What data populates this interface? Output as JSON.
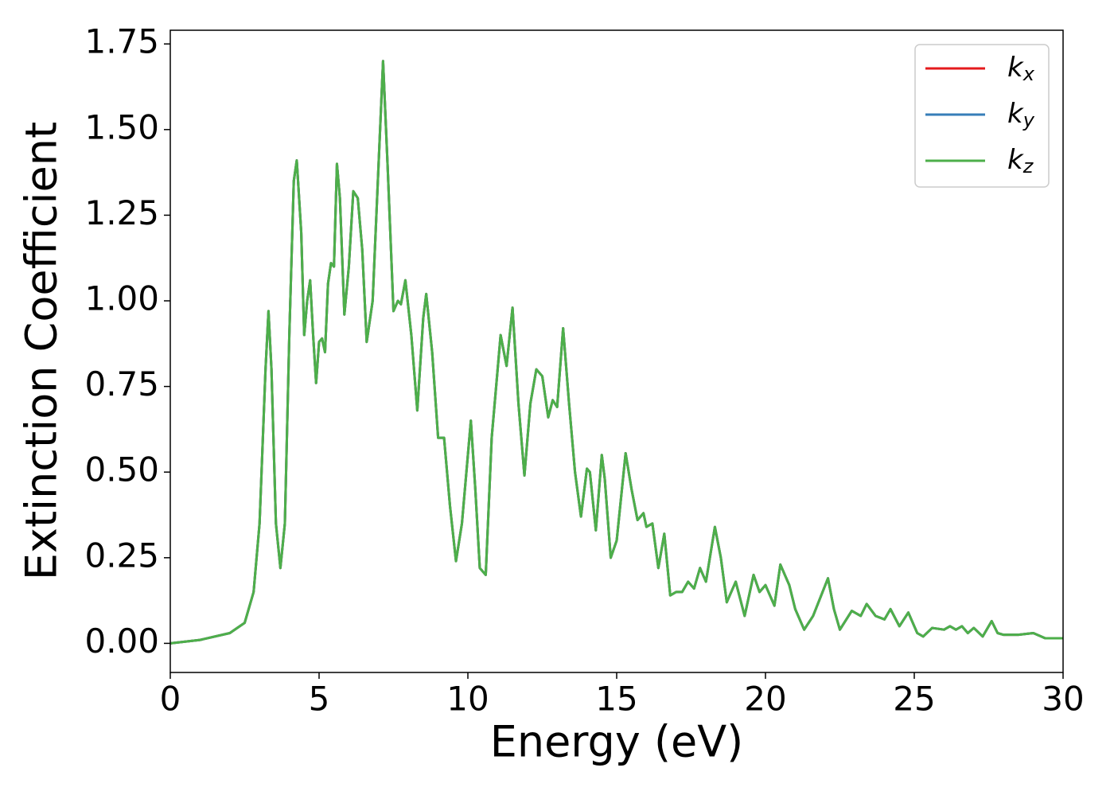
{
  "chart_data": {
    "type": "line",
    "x_label": "Energy (eV)",
    "y_label": "Extinction Coefficient",
    "xlim": [
      0,
      30
    ],
    "ylim": [
      -0.085,
      1.79
    ],
    "xticks": [
      0,
      5,
      10,
      15,
      20,
      25,
      30
    ],
    "yticks": [
      {
        "value": 0,
        "label": "0.00"
      },
      {
        "value": 0.25,
        "label": "0.25"
      },
      {
        "value": 0.5,
        "label": "0.50"
      },
      {
        "value": 0.75,
        "label": "0.75"
      },
      {
        "value": 1,
        "label": "1.00"
      },
      {
        "value": 1.25,
        "label": "1.25"
      },
      {
        "value": 1.5,
        "label": "1.50"
      },
      {
        "value": 1.75,
        "label": "1.75"
      }
    ],
    "grid": false,
    "legend": "upper right",
    "x": [
      0,
      1,
      2,
      2.5,
      2.8,
      3.0,
      3.2,
      3.3,
      3.4,
      3.55,
      3.7,
      3.85,
      4.0,
      4.15,
      4.25,
      4.4,
      4.5,
      4.6,
      4.7,
      4.8,
      4.9,
      5.0,
      5.1,
      5.2,
      5.3,
      5.4,
      5.5,
      5.6,
      5.7,
      5.85,
      6.0,
      6.15,
      6.3,
      6.45,
      6.6,
      6.8,
      7.0,
      7.15,
      7.3,
      7.5,
      7.65,
      7.75,
      7.9,
      8.1,
      8.3,
      8.5,
      8.6,
      8.8,
      9.0,
      9.2,
      9.4,
      9.6,
      9.8,
      10.0,
      10.1,
      10.25,
      10.4,
      10.6,
      10.8,
      11.1,
      11.3,
      11.5,
      11.7,
      11.9,
      12.1,
      12.3,
      12.5,
      12.7,
      12.85,
      13.0,
      13.2,
      13.4,
      13.6,
      13.8,
      14.0,
      14.1,
      14.3,
      14.5,
      14.6,
      14.8,
      15.0,
      15.3,
      15.5,
      15.7,
      15.9,
      16.0,
      16.2,
      16.4,
      16.6,
      16.8,
      17.0,
      17.2,
      17.4,
      17.6,
      17.8,
      18.0,
      18.3,
      18.5,
      18.7,
      19.0,
      19.3,
      19.6,
      19.8,
      20.0,
      20.3,
      20.5,
      20.8,
      21.0,
      21.3,
      21.6,
      22.1,
      22.3,
      22.5,
      22.9,
      23.2,
      23.4,
      23.7,
      24.0,
      24.2,
      24.5,
      24.8,
      25.1,
      25.3,
      25.6,
      26.0,
      26.2,
      26.4,
      26.6,
      26.8,
      27.0,
      27.3,
      27.6,
      27.8,
      28.0,
      28.5,
      29.0,
      29.4,
      30.0
    ],
    "series": [
      {
        "name": "kx",
        "color": "#e41a1c",
        "values": [
          0,
          0.01,
          0.03,
          0.06,
          0.15,
          0.35,
          0.8,
          0.97,
          0.8,
          0.35,
          0.22,
          0.35,
          0.9,
          1.35,
          1.41,
          1.2,
          0.9,
          1.0,
          1.06,
          0.9,
          0.76,
          0.88,
          0.89,
          0.85,
          1.05,
          1.11,
          1.1,
          1.4,
          1.3,
          0.96,
          1.1,
          1.32,
          1.3,
          1.15,
          0.88,
          1.0,
          1.4,
          1.7,
          1.4,
          0.97,
          1.0,
          0.99,
          1.06,
          0.9,
          0.68,
          0.95,
          1.02,
          0.85,
          0.6,
          0.6,
          0.4,
          0.24,
          0.35,
          0.55,
          0.65,
          0.45,
          0.22,
          0.2,
          0.6,
          0.9,
          0.81,
          0.98,
          0.7,
          0.49,
          0.7,
          0.8,
          0.78,
          0.66,
          0.71,
          0.69,
          0.92,
          0.7,
          0.5,
          0.37,
          0.51,
          0.5,
          0.33,
          0.55,
          0.48,
          0.25,
          0.3,
          0.555,
          0.45,
          0.36,
          0.38,
          0.34,
          0.35,
          0.22,
          0.32,
          0.14,
          0.15,
          0.15,
          0.18,
          0.16,
          0.22,
          0.18,
          0.34,
          0.25,
          0.12,
          0.18,
          0.08,
          0.2,
          0.15,
          0.17,
          0.11,
          0.23,
          0.17,
          0.1,
          0.04,
          0.08,
          0.19,
          0.1,
          0.04,
          0.095,
          0.08,
          0.115,
          0.08,
          0.07,
          0.1,
          0.05,
          0.09,
          0.03,
          0.02,
          0.045,
          0.04,
          0.05,
          0.04,
          0.05,
          0.03,
          0.045,
          0.02,
          0.065,
          0.03,
          0.025,
          0.025,
          0.03,
          0.015,
          0.015
        ]
      },
      {
        "name": "ky",
        "color": "#377eb8",
        "values": [
          0,
          0.01,
          0.03,
          0.06,
          0.15,
          0.35,
          0.8,
          0.97,
          0.8,
          0.35,
          0.22,
          0.35,
          0.9,
          1.35,
          1.41,
          1.2,
          0.9,
          1.0,
          1.06,
          0.9,
          0.76,
          0.88,
          0.89,
          0.85,
          1.05,
          1.11,
          1.1,
          1.4,
          1.3,
          0.96,
          1.1,
          1.32,
          1.3,
          1.15,
          0.88,
          1.0,
          1.4,
          1.7,
          1.4,
          0.97,
          1.0,
          0.99,
          1.06,
          0.9,
          0.68,
          0.95,
          1.02,
          0.85,
          0.6,
          0.6,
          0.4,
          0.24,
          0.35,
          0.55,
          0.65,
          0.45,
          0.22,
          0.2,
          0.6,
          0.9,
          0.81,
          0.98,
          0.7,
          0.49,
          0.7,
          0.8,
          0.78,
          0.66,
          0.71,
          0.69,
          0.92,
          0.7,
          0.5,
          0.37,
          0.51,
          0.5,
          0.33,
          0.55,
          0.48,
          0.25,
          0.3,
          0.555,
          0.45,
          0.36,
          0.38,
          0.34,
          0.35,
          0.22,
          0.32,
          0.14,
          0.15,
          0.15,
          0.18,
          0.16,
          0.22,
          0.18,
          0.34,
          0.25,
          0.12,
          0.18,
          0.08,
          0.2,
          0.15,
          0.17,
          0.11,
          0.23,
          0.17,
          0.1,
          0.04,
          0.08,
          0.19,
          0.1,
          0.04,
          0.095,
          0.08,
          0.115,
          0.08,
          0.07,
          0.1,
          0.05,
          0.09,
          0.03,
          0.02,
          0.045,
          0.04,
          0.05,
          0.04,
          0.05,
          0.03,
          0.045,
          0.02,
          0.065,
          0.03,
          0.025,
          0.025,
          0.03,
          0.015,
          0.015
        ]
      },
      {
        "name": "kz",
        "color": "#4daf4a",
        "values": [
          0,
          0.01,
          0.03,
          0.06,
          0.15,
          0.35,
          0.8,
          0.97,
          0.8,
          0.35,
          0.22,
          0.35,
          0.9,
          1.35,
          1.41,
          1.2,
          0.9,
          1.0,
          1.06,
          0.9,
          0.76,
          0.88,
          0.89,
          0.85,
          1.05,
          1.11,
          1.1,
          1.4,
          1.3,
          0.96,
          1.1,
          1.32,
          1.3,
          1.15,
          0.88,
          1.0,
          1.4,
          1.7,
          1.4,
          0.97,
          1.0,
          0.99,
          1.06,
          0.9,
          0.68,
          0.95,
          1.02,
          0.85,
          0.6,
          0.6,
          0.4,
          0.24,
          0.35,
          0.55,
          0.65,
          0.45,
          0.22,
          0.2,
          0.6,
          0.9,
          0.81,
          0.98,
          0.7,
          0.49,
          0.7,
          0.8,
          0.78,
          0.66,
          0.71,
          0.69,
          0.92,
          0.7,
          0.5,
          0.37,
          0.51,
          0.5,
          0.33,
          0.55,
          0.48,
          0.25,
          0.3,
          0.555,
          0.45,
          0.36,
          0.38,
          0.34,
          0.35,
          0.22,
          0.32,
          0.14,
          0.15,
          0.15,
          0.18,
          0.16,
          0.22,
          0.18,
          0.34,
          0.25,
          0.12,
          0.18,
          0.08,
          0.2,
          0.15,
          0.17,
          0.11,
          0.23,
          0.17,
          0.1,
          0.04,
          0.08,
          0.19,
          0.1,
          0.04,
          0.095,
          0.08,
          0.115,
          0.08,
          0.07,
          0.1,
          0.05,
          0.09,
          0.03,
          0.02,
          0.045,
          0.04,
          0.05,
          0.04,
          0.05,
          0.03,
          0.045,
          0.02,
          0.065,
          0.03,
          0.025,
          0.025,
          0.03,
          0.015,
          0.015
        ]
      }
    ]
  }
}
